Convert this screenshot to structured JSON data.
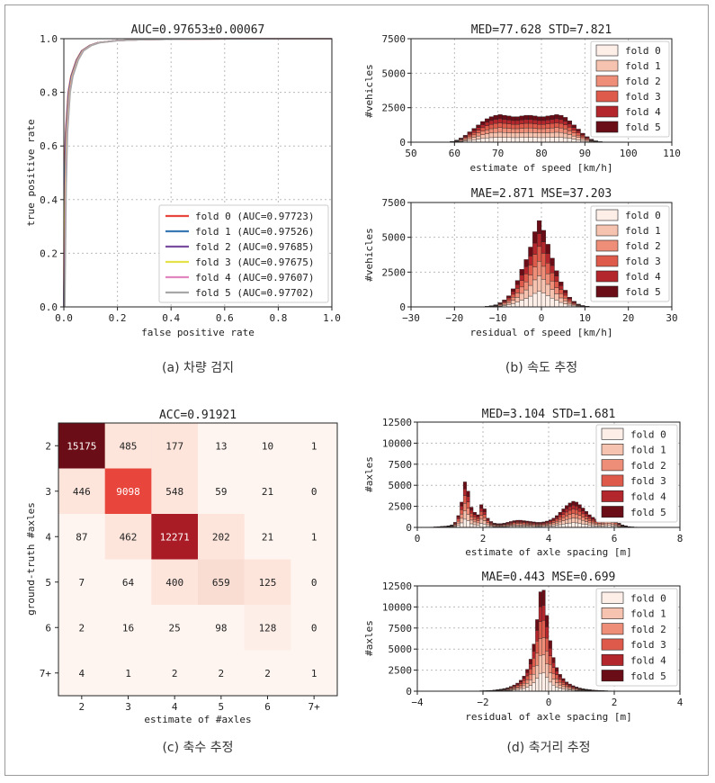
{
  "captions": {
    "a": "(a) 차량 검지",
    "b": "(b) 속도 추정",
    "c": "(c) 축수 추정",
    "d": "(d) 축거리 추정"
  },
  "fold_labels": [
    "fold 0",
    "fold 1",
    "fold 2",
    "fold 3",
    "fold 4",
    "fold 5"
  ],
  "fold_hist_colors": [
    "#fdeee8",
    "#f6c3b0",
    "#ee8e78",
    "#de5a4a",
    "#b2262c",
    "#6a0d17"
  ],
  "chart_data": [
    {
      "id": "roc",
      "type": "line",
      "title": "AUC=0.97653±0.00067",
      "xlabel": "false positive rate",
      "ylabel": "true positive rate",
      "xlim": [
        0.0,
        1.0
      ],
      "ylim": [
        0.0,
        1.0
      ],
      "xticks": [
        "0.0",
        "0.2",
        "0.4",
        "0.6",
        "0.8",
        "1.0"
      ],
      "yticks": [
        "0.0",
        "0.2",
        "0.4",
        "0.6",
        "0.8",
        "1.0"
      ],
      "grid": true,
      "legend_position": "bottom-right",
      "series": [
        {
          "name": "fold 0 (AUC=0.97723)",
          "color": "#e8453c"
        },
        {
          "name": "fold 1 (AUC=0.97526)",
          "color": "#3a78b4"
        },
        {
          "name": "fold 2 (AUC=0.97685)",
          "color": "#7a4ea0"
        },
        {
          "name": "fold 3 (AUC=0.97675)",
          "color": "#e6e24a"
        },
        {
          "name": "fold 4 (AUC=0.97607)",
          "color": "#e386c0"
        },
        {
          "name": "fold 5 (AUC=0.97702)",
          "color": "#a8a8a8"
        }
      ],
      "x": [
        0,
        0.005,
        0.01,
        0.02,
        0.03,
        0.05,
        0.07,
        0.1,
        0.13,
        0.2,
        0.3,
        0.5,
        1.0
      ],
      "y": [
        0,
        0.45,
        0.65,
        0.8,
        0.86,
        0.92,
        0.955,
        0.975,
        0.985,
        0.993,
        0.997,
        0.999,
        1.0
      ]
    },
    {
      "id": "speed_est",
      "type": "bar",
      "title": "MED=77.628 STD=7.821",
      "xlabel": "estimate of speed [km/h]",
      "ylabel": "#vehicles",
      "xlim": [
        50,
        110
      ],
      "ylim": [
        0,
        7500
      ],
      "xticks": [
        "50",
        "60",
        "70",
        "80",
        "90",
        "100",
        "110"
      ],
      "yticks": [
        "0",
        "2500",
        "5000",
        "7500"
      ],
      "legend_position": "top-right",
      "bin_start": 58,
      "bin_width": 1,
      "totals": [
        20,
        60,
        150,
        300,
        500,
        750,
        1000,
        1250,
        1500,
        1700,
        1850,
        1950,
        2000,
        1950,
        1900,
        1850,
        1850,
        1900,
        1950,
        1950,
        1900,
        1850,
        1850,
        1900,
        1950,
        2000,
        1950,
        1800,
        1550,
        1250,
        950,
        650,
        400,
        220,
        100,
        40
      ]
    },
    {
      "id": "speed_res",
      "type": "bar",
      "title": "MAE=2.871 MSE=37.203",
      "xlabel": "residual of speed [km/h]",
      "ylabel": "#vehicles",
      "xlim": [
        -30,
        30
      ],
      "ylim": [
        0,
        7500
      ],
      "xticks": [
        "−30",
        "−20",
        "−10",
        "0",
        "10",
        "20",
        "30"
      ],
      "yticks": [
        "0",
        "2500",
        "5000",
        "7500"
      ],
      "legend_position": "top-right",
      "bin_start": -14,
      "bin_width": 1,
      "totals": [
        20,
        40,
        80,
        150,
        300,
        500,
        800,
        1300,
        1900,
        2700,
        3400,
        4300,
        5400,
        6200,
        5500,
        4500,
        3500,
        2600,
        1800,
        1200,
        700,
        400,
        200,
        100,
        50,
        20,
        10
      ]
    },
    {
      "id": "axles_cm",
      "type": "heatmap",
      "title": "ACC=0.91921",
      "xlabel": "estimate of #axles",
      "ylabel": "ground-truth #axles",
      "categories": [
        "2",
        "3",
        "4",
        "5",
        "6",
        "7+"
      ],
      "matrix": [
        [
          15175,
          485,
          177,
          13,
          10,
          1
        ],
        [
          446,
          9098,
          548,
          59,
          21,
          0
        ],
        [
          87,
          462,
          12271,
          202,
          21,
          1
        ],
        [
          7,
          64,
          400,
          659,
          125,
          0
        ],
        [
          2,
          16,
          25,
          98,
          128,
          0
        ],
        [
          4,
          1,
          2,
          2,
          2,
          1
        ]
      ],
      "diag_colors": [
        "#6b0d16",
        "#e8463c",
        "#a91b25",
        "#f9ddd2",
        "#fdeee8",
        "#fff5f0"
      ],
      "offdiag_color": "#fff5f0",
      "light_cell_color": "#fde5dc"
    },
    {
      "id": "spacing_est",
      "type": "bar",
      "title": "MED=3.104 STD=1.681",
      "xlabel": "estimate of axle spacing [m]",
      "ylabel": "#axles",
      "xlim": [
        0,
        8
      ],
      "ylim": [
        0,
        12500
      ],
      "xticks": [
        "0",
        "2",
        "4",
        "6",
        "8"
      ],
      "yticks": [
        "0",
        "2500",
        "5000",
        "7500",
        "10000",
        "12500"
      ],
      "legend_position": "top-right",
      "bin_start": 0.3,
      "bin_width": 0.1,
      "totals": [
        20,
        40,
        60,
        90,
        120,
        150,
        200,
        300,
        600,
        1400,
        3000,
        5400,
        4300,
        2400,
        1800,
        1500,
        2700,
        2200,
        1100,
        700,
        500,
        450,
        450,
        500,
        600,
        700,
        800,
        850,
        850,
        800,
        750,
        700,
        650,
        600,
        600,
        650,
        750,
        900,
        1100,
        1400,
        1800,
        2200,
        2600,
        2900,
        3100,
        3000,
        2700,
        2300,
        1900,
        1500,
        1200,
        1000,
        900,
        1000,
        1200,
        1300,
        1100,
        800,
        500,
        300,
        180,
        100,
        60,
        40,
        30,
        20,
        10
      ]
    },
    {
      "id": "spacing_res",
      "type": "bar",
      "title": "MAE=0.443 MSE=0.699",
      "xlabel": "residual of axle spacing [m]",
      "ylabel": "#axles",
      "xlim": [
        -4,
        4
      ],
      "ylim": [
        0,
        12500
      ],
      "xticks": [
        "−4",
        "−2",
        "0",
        "2",
        "4"
      ],
      "yticks": [
        "0",
        "2500",
        "5000",
        "7500",
        "10000",
        "12500"
      ],
      "legend_position": "top-right",
      "bin_start": -2.1,
      "bin_width": 0.1,
      "totals": [
        50,
        60,
        80,
        100,
        140,
        180,
        240,
        320,
        420,
        560,
        740,
        960,
        1300,
        1800,
        2600,
        3800,
        5600,
        8500,
        11800,
        12000,
        9000,
        6000,
        4000,
        2800,
        2000,
        1500,
        1100,
        850,
        650,
        500,
        380,
        300,
        230,
        180,
        140,
        110,
        90,
        70,
        55,
        40,
        30,
        20
      ]
    }
  ]
}
